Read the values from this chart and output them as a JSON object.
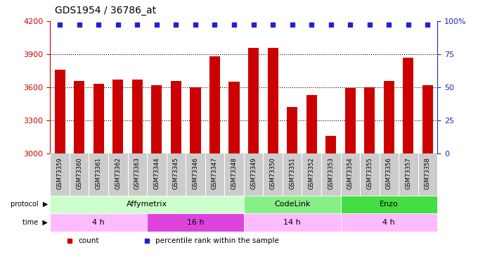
{
  "title": "GDS1954 / 36786_at",
  "samples": [
    "GSM73359",
    "GSM73360",
    "GSM73361",
    "GSM73362",
    "GSM73363",
    "GSM73344",
    "GSM73345",
    "GSM73346",
    "GSM73347",
    "GSM73348",
    "GSM73349",
    "GSM73350",
    "GSM73351",
    "GSM73352",
    "GSM73353",
    "GSM73354",
    "GSM73355",
    "GSM73356",
    "GSM73357",
    "GSM73358"
  ],
  "counts": [
    3760,
    3660,
    3630,
    3670,
    3670,
    3620,
    3660,
    3600,
    3880,
    3650,
    3960,
    3960,
    3420,
    3530,
    3160,
    3590,
    3600,
    3660,
    3870,
    3620
  ],
  "bar_color": "#cc0000",
  "dot_color": "#2222cc",
  "ylim_left": [
    3000,
    4200
  ],
  "ylim_right": [
    0,
    100
  ],
  "yticks_left": [
    3000,
    3300,
    3600,
    3900,
    4200
  ],
  "yticks_right": [
    0,
    25,
    50,
    75,
    100
  ],
  "protocol_groups": [
    {
      "label": "Affymetrix",
      "start": 0,
      "end": 10,
      "color": "#ccffcc"
    },
    {
      "label": "CodeLink",
      "start": 10,
      "end": 15,
      "color": "#88ee88"
    },
    {
      "label": "Enzo",
      "start": 15,
      "end": 20,
      "color": "#44dd44"
    }
  ],
  "time_groups": [
    {
      "label": "4 h",
      "start": 0,
      "end": 5,
      "color": "#ffbbff"
    },
    {
      "label": "16 h",
      "start": 5,
      "end": 10,
      "color": "#dd44dd"
    },
    {
      "label": "14 h",
      "start": 10,
      "end": 15,
      "color": "#ffbbff"
    },
    {
      "label": "4 h",
      "start": 15,
      "end": 20,
      "color": "#ffbbff"
    }
  ],
  "xtick_bg": "#cccccc",
  "bg_color": "#ffffff",
  "left_tick_color": "#cc0000",
  "right_tick_color": "#2222cc",
  "grid_yticks": [
    3300,
    3600,
    3900
  ]
}
